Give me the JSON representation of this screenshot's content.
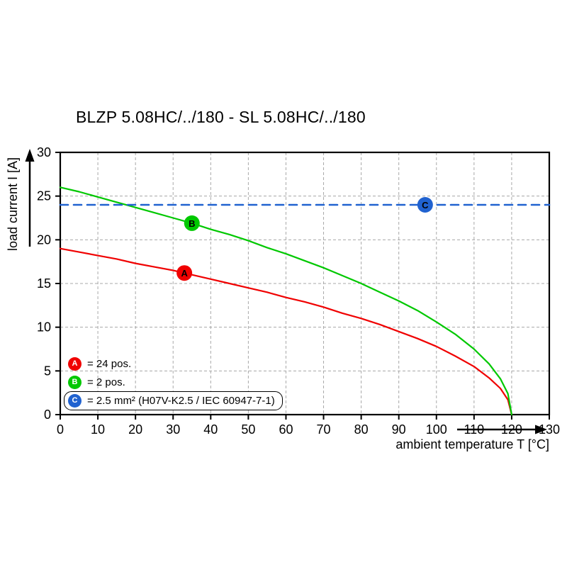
{
  "title": "BLZP 5.08HC/../180 - SL 5.08HC/../180",
  "chart_data": {
    "type": "line",
    "title": "BLZP 5.08HC/../180 - SL 5.08HC/../180",
    "xlabel": "ambient temperature T [°C]",
    "ylabel": "load current I [A]",
    "xlim": [
      0,
      130
    ],
    "ylim": [
      0,
      30
    ],
    "xticks": [
      0,
      10,
      20,
      30,
      40,
      50,
      60,
      70,
      80,
      90,
      100,
      110,
      120,
      130
    ],
    "yticks": [
      0,
      5,
      10,
      15,
      20,
      25,
      30
    ],
    "grid": true,
    "grid_color": "#a8a8a8",
    "axis_color": "#000000",
    "legend_position": "bottom-left-inside",
    "series": [
      {
        "name": "A",
        "label": "= 24 pos.",
        "color": "#f00000",
        "style": "solid",
        "marker": [
          33,
          16.2
        ],
        "points": [
          [
            0,
            19.0
          ],
          [
            5,
            18.6
          ],
          [
            10,
            18.2
          ],
          [
            15,
            17.8
          ],
          [
            20,
            17.3
          ],
          [
            25,
            16.9
          ],
          [
            30,
            16.5
          ],
          [
            35,
            16.0
          ],
          [
            40,
            15.5
          ],
          [
            45,
            15.0
          ],
          [
            50,
            14.5
          ],
          [
            55,
            14.0
          ],
          [
            60,
            13.4
          ],
          [
            65,
            12.9
          ],
          [
            70,
            12.3
          ],
          [
            75,
            11.6
          ],
          [
            80,
            11.0
          ],
          [
            85,
            10.3
          ],
          [
            90,
            9.5
          ],
          [
            95,
            8.7
          ],
          [
            100,
            7.8
          ],
          [
            105,
            6.7
          ],
          [
            110,
            5.5
          ],
          [
            114,
            4.2
          ],
          [
            117,
            3.0
          ],
          [
            119,
            1.7
          ],
          [
            120,
            0
          ]
        ]
      },
      {
        "name": "B",
        "label": "= 2 pos.",
        "color": "#00c800",
        "style": "solid",
        "marker": [
          35,
          21.9
        ],
        "points": [
          [
            0,
            26.0
          ],
          [
            5,
            25.5
          ],
          [
            10,
            24.9
          ],
          [
            15,
            24.3
          ],
          [
            20,
            23.7
          ],
          [
            25,
            23.1
          ],
          [
            30,
            22.5
          ],
          [
            35,
            21.9
          ],
          [
            40,
            21.2
          ],
          [
            45,
            20.6
          ],
          [
            50,
            19.9
          ],
          [
            55,
            19.1
          ],
          [
            60,
            18.4
          ],
          [
            65,
            17.6
          ],
          [
            70,
            16.8
          ],
          [
            75,
            15.9
          ],
          [
            80,
            15.0
          ],
          [
            85,
            14.0
          ],
          [
            90,
            13.0
          ],
          [
            95,
            11.9
          ],
          [
            100,
            10.6
          ],
          [
            105,
            9.2
          ],
          [
            110,
            7.5
          ],
          [
            114,
            5.8
          ],
          [
            117,
            4.1
          ],
          [
            119,
            2.4
          ],
          [
            120,
            0
          ]
        ]
      },
      {
        "name": "C",
        "label": "= 2.5 mm² (H07V-K2.5 / IEC 60947-7-1)",
        "color": "#2062d0",
        "style": "dashed",
        "marker": [
          97,
          24
        ],
        "points": [
          [
            0,
            24
          ],
          [
            130,
            24
          ]
        ]
      }
    ]
  }
}
